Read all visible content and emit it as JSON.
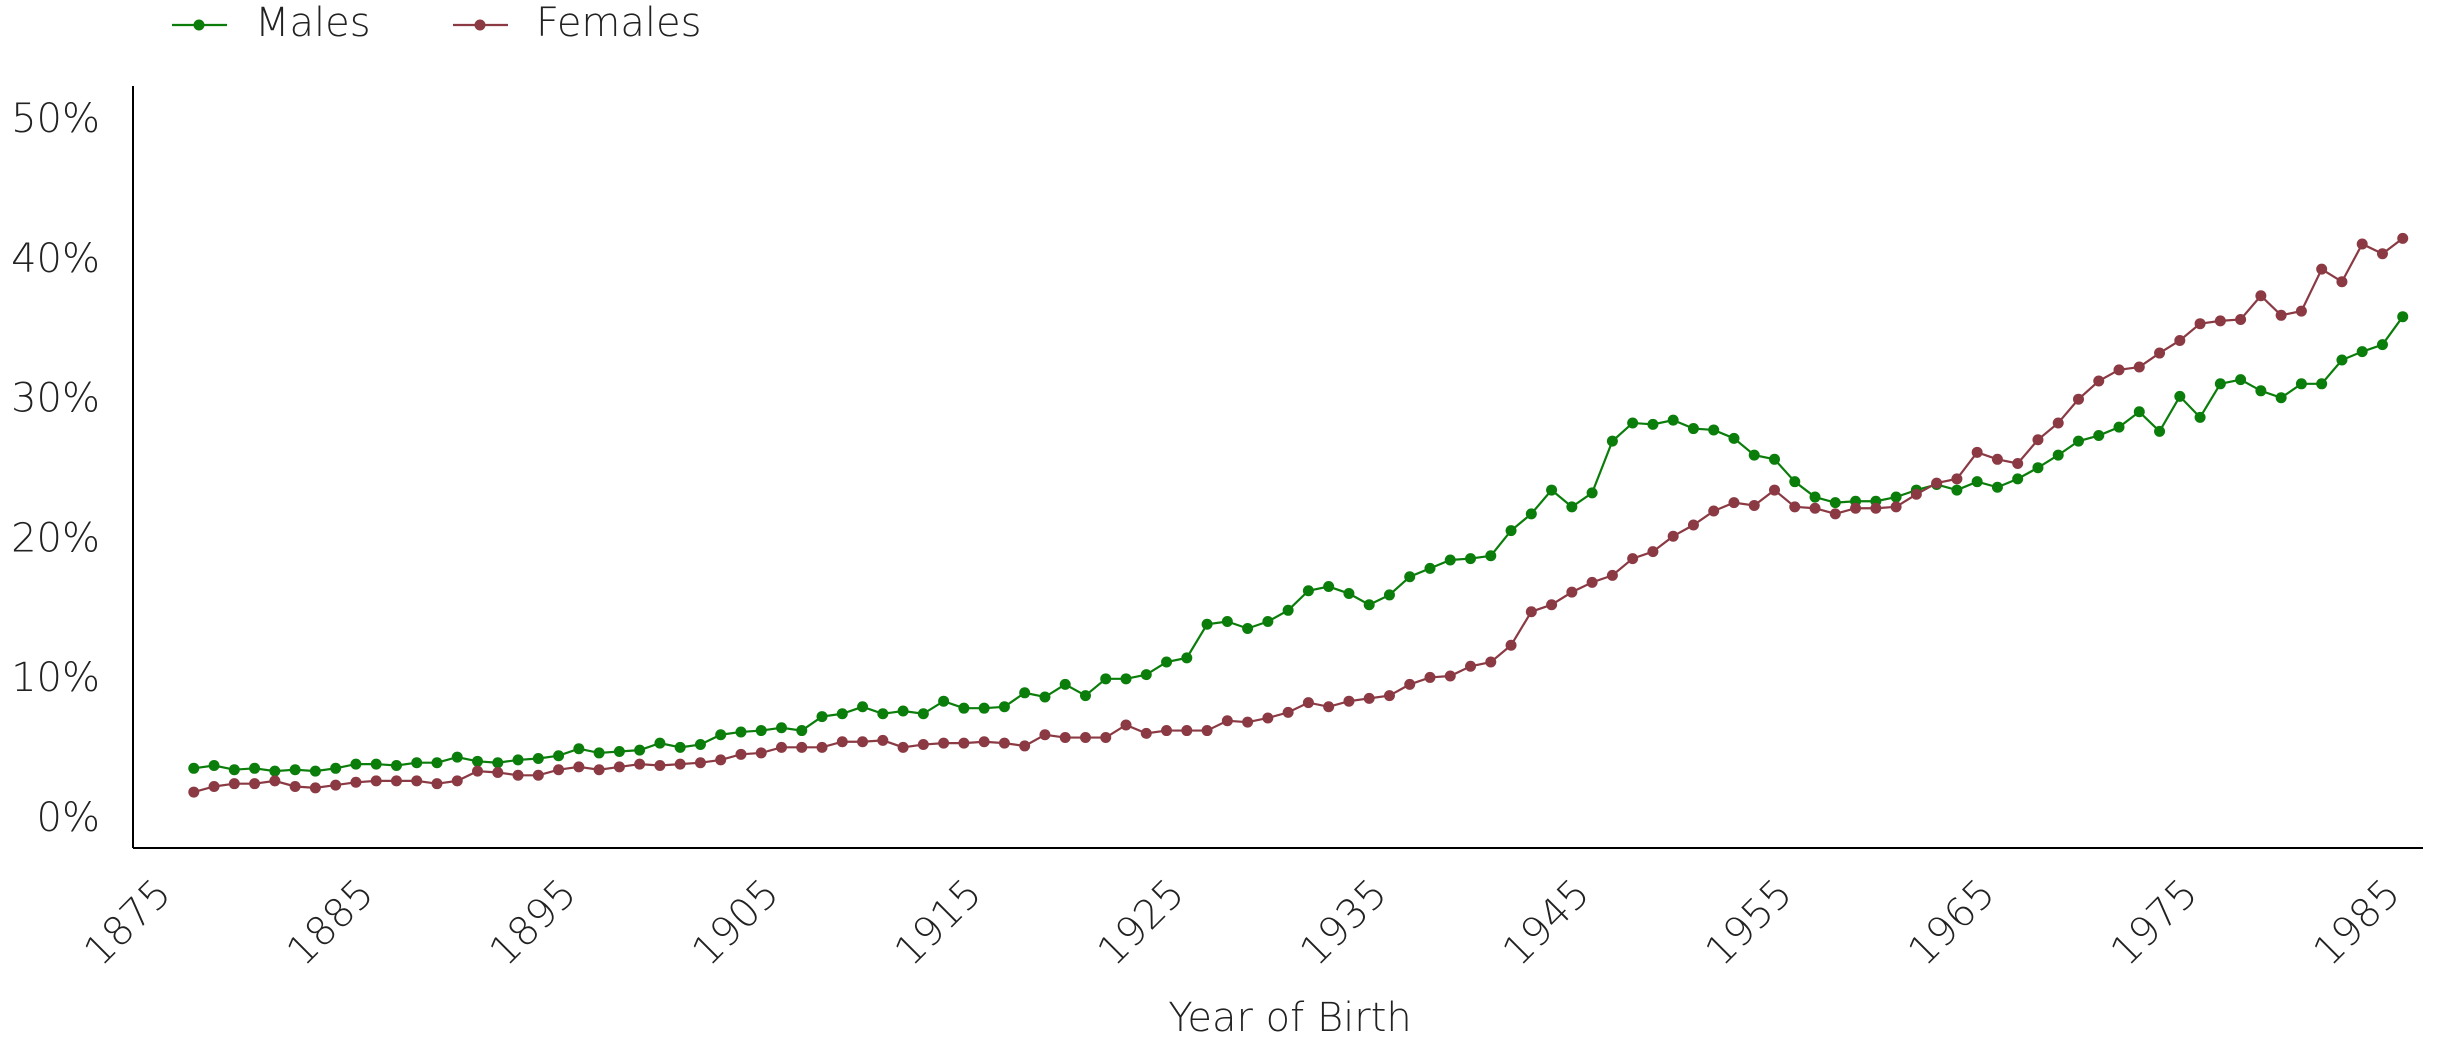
{
  "chart_data": {
    "type": "line",
    "x_label": "Year of Birth",
    "x": [
      1877,
      1878,
      1879,
      1880,
      1881,
      1882,
      1883,
      1884,
      1885,
      1886,
      1887,
      1888,
      1889,
      1890,
      1891,
      1892,
      1893,
      1894,
      1895,
      1896,
      1897,
      1898,
      1899,
      1900,
      1901,
      1902,
      1903,
      1904,
      1905,
      1906,
      1907,
      1908,
      1909,
      1910,
      1911,
      1912,
      1913,
      1914,
      1915,
      1916,
      1917,
      1918,
      1919,
      1920,
      1921,
      1922,
      1923,
      1924,
      1925,
      1926,
      1927,
      1928,
      1929,
      1930,
      1931,
      1932,
      1933,
      1934,
      1935,
      1936,
      1937,
      1938,
      1939,
      1940,
      1941,
      1942,
      1943,
      1944,
      1945,
      1946,
      1947,
      1948,
      1949,
      1950,
      1951,
      1952,
      1953,
      1954,
      1955,
      1956,
      1957,
      1958,
      1959,
      1960,
      1961,
      1962,
      1963,
      1964,
      1965,
      1966,
      1967,
      1968,
      1969,
      1970,
      1971,
      1972,
      1973,
      1974,
      1975,
      1976,
      1977,
      1978,
      1979,
      1980,
      1981,
      1982,
      1983,
      1984,
      1985,
      1986
    ],
    "series": [
      {
        "name": "Males",
        "color": "#0a7d0a",
        "values": [
          3.7,
          3.9,
          3.6,
          3.7,
          3.5,
          3.6,
          3.5,
          3.7,
          4.0,
          4.0,
          3.9,
          4.1,
          4.1,
          4.5,
          4.2,
          4.1,
          4.3,
          4.4,
          4.6,
          5.1,
          4.8,
          4.9,
          5.0,
          5.5,
          5.2,
          5.4,
          6.1,
          6.3,
          6.4,
          6.6,
          6.4,
          7.4,
          7.6,
          8.1,
          7.6,
          7.8,
          7.6,
          8.5,
          8.0,
          8.0,
          8.1,
          9.1,
          8.8,
          9.7,
          8.9,
          10.1,
          10.1,
          10.4,
          11.3,
          11.6,
          14.0,
          14.2,
          13.7,
          14.2,
          15.0,
          16.4,
          16.7,
          16.2,
          15.4,
          16.1,
          17.4,
          18.0,
          18.6,
          18.7,
          18.9,
          20.7,
          21.9,
          23.6,
          22.4,
          23.4,
          27.1,
          28.4,
          28.3,
          28.6,
          28.0,
          27.9,
          27.3,
          26.1,
          25.8,
          24.2,
          23.1,
          22.7,
          22.8,
          22.8,
          23.1,
          23.6,
          24.0,
          23.6,
          24.2,
          23.8,
          24.4,
          25.2,
          26.1,
          27.1,
          27.5,
          28.1,
          29.2,
          27.8,
          30.3,
          28.8,
          31.2,
          31.5,
          30.7,
          30.2,
          31.2,
          31.2,
          32.9,
          33.5,
          34.0,
          36.0
        ]
      },
      {
        "name": "Females",
        "color": "#8b3a44",
        "values": [
          2.0,
          2.4,
          2.6,
          2.6,
          2.8,
          2.4,
          2.3,
          2.5,
          2.7,
          2.8,
          2.8,
          2.8,
          2.6,
          2.8,
          3.5,
          3.4,
          3.2,
          3.2,
          3.6,
          3.8,
          3.6,
          3.8,
          4.0,
          3.9,
          4.0,
          4.1,
          4.3,
          4.7,
          4.8,
          5.2,
          5.2,
          5.2,
          5.6,
          5.6,
          5.7,
          5.2,
          5.4,
          5.5,
          5.5,
          5.6,
          5.5,
          5.3,
          6.1,
          5.9,
          5.9,
          5.9,
          6.8,
          6.2,
          6.4,
          6.4,
          6.4,
          7.1,
          7.0,
          7.3,
          7.7,
          8.4,
          8.1,
          8.5,
          8.7,
          8.9,
          9.7,
          10.2,
          10.3,
          11.0,
          11.3,
          12.5,
          14.9,
          15.4,
          16.3,
          17.0,
          17.5,
          18.7,
          19.2,
          20.3,
          21.1,
          22.1,
          22.7,
          22.5,
          23.6,
          22.4,
          22.3,
          21.9,
          22.3,
          22.3,
          22.4,
          23.3,
          24.1,
          24.4,
          26.3,
          25.8,
          25.5,
          27.2,
          28.4,
          30.1,
          31.4,
          32.2,
          32.4,
          33.4,
          34.3,
          35.5,
          35.7,
          35.8,
          37.5,
          36.1,
          36.4,
          39.4,
          38.5,
          41.2,
          40.5,
          41.6
        ]
      }
    ],
    "xlim": [
      1874,
      1987
    ],
    "xticks": [
      1875,
      1885,
      1895,
      1905,
      1915,
      1925,
      1935,
      1945,
      1955,
      1965,
      1975,
      1985
    ],
    "ylim": [
      -2,
      52.5
    ],
    "yticks": [
      {
        "value": 0,
        "label": "0%"
      },
      {
        "value": 10,
        "label": "10%"
      },
      {
        "value": 20,
        "label": "20%"
      },
      {
        "value": 30,
        "label": "30%"
      },
      {
        "value": 40,
        "label": "40%"
      },
      {
        "value": 50,
        "label": "50%"
      }
    ],
    "legend": "top-left"
  }
}
